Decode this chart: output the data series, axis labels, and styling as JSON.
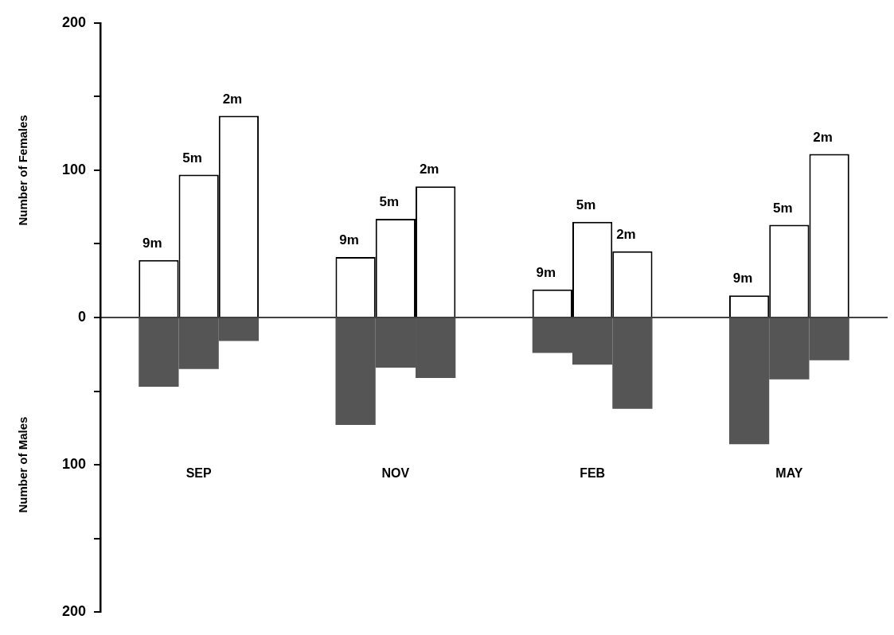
{
  "chart_data": {
    "type": "bar",
    "ylabel": "Number of Females",
    "annotations": [
      "Number of Males"
    ],
    "categories": [
      "SEP",
      "NOV",
      "FEB",
      "MAY"
    ],
    "grid": false,
    "legend": false,
    "ylim": [
      -200,
      200
    ],
    "yticks": [
      200,
      {
        "value": 150,
        "label": null
      },
      100,
      {
        "value": 50,
        "label": null
      },
      0,
      {
        "value": -50,
        "label": null
      },
      {
        "value": -100,
        "label": "100"
      },
      {
        "value": -150,
        "label": null
      },
      {
        "value": -200,
        "label": "200"
      }
    ],
    "ref_lines": [
      {
        "axis": "y",
        "value": 0,
        "color": "#000000"
      }
    ],
    "series": [
      {
        "name": "9m",
        "color": "#ffffff",
        "values": [
          39,
          41,
          19,
          15
        ]
      },
      {
        "name": "5m",
        "color": "#ffffff",
        "values": [
          97,
          67,
          65,
          63
        ]
      },
      {
        "name": "2m",
        "color": "#ffffff",
        "values": [
          137,
          89,
          45,
          111
        ]
      },
      {
        "color": "#555555",
        "values": [
          -47,
          -73,
          -24,
          -86
        ]
      },
      {
        "color": "#555555",
        "values": [
          -35,
          -34,
          -32,
          -42
        ]
      },
      {
        "color": "#555555",
        "values": [
          -16,
          -41,
          -62,
          -29
        ]
      }
    ]
  }
}
